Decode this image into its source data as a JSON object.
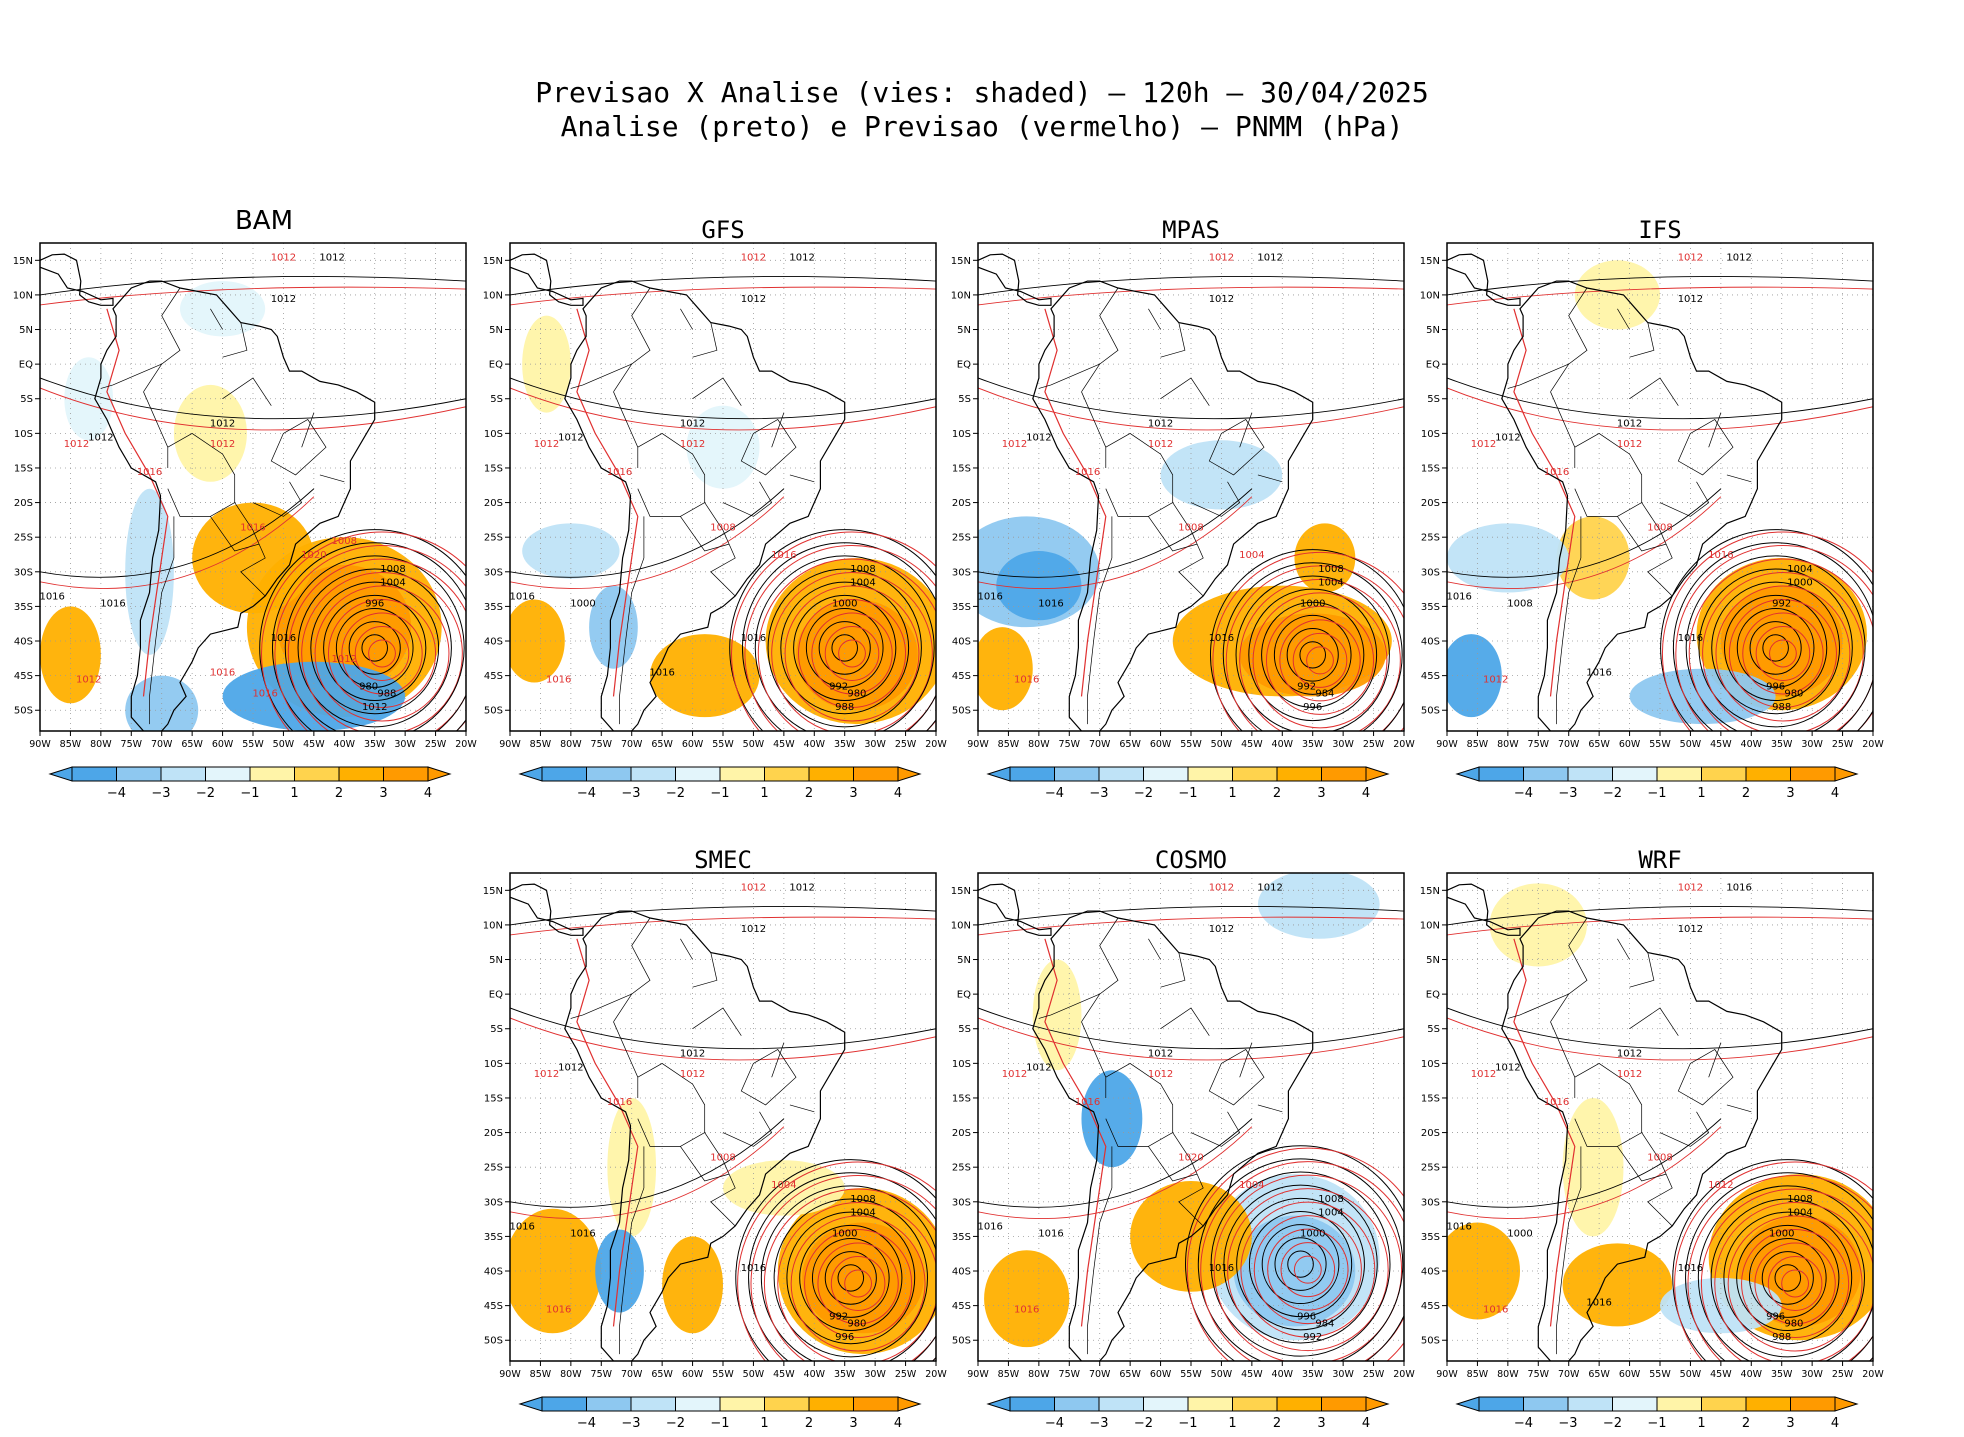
{
  "figure": {
    "title_line1": "Previsao X Analise (vies: shaded) – 120h – 30/04/2025",
    "title_line2": "Analise (preto) e Previsao (vermelho) – PNMM (hPa)"
  },
  "axes": {
    "lat_labels": [
      "15N",
      "10N",
      "5N",
      "EQ",
      "5S",
      "10S",
      "15S",
      "20S",
      "25S",
      "30S",
      "35S",
      "40S",
      "45S",
      "50S"
    ],
    "lon_labels": [
      "90W",
      "85W",
      "80W",
      "75W",
      "70W",
      "65W",
      "60W",
      "55W",
      "50W",
      "45W",
      "40W",
      "35W",
      "30W",
      "25W",
      "20W"
    ]
  },
  "colorbar": {
    "labels": [
      "-4",
      "-3",
      "-2",
      "-1",
      "1",
      "2",
      "3",
      "4"
    ],
    "colors": [
      "#4da6e8",
      "#8ec8f0",
      "#bfe3f7",
      "#e3f5fb",
      "#ffffff",
      "#fff4a8",
      "#ffd34d",
      "#ffb000",
      "#ff9a00"
    ]
  },
  "colors": {
    "analysis_contour": "#000000",
    "forecast_contour": "#e03030",
    "coast": "#000000"
  },
  "panels": [
    {
      "name": "BAM",
      "labels_black": [
        "1012",
        "1012",
        "1012",
        "1012",
        "1016",
        "1016",
        "1008",
        "1004",
        "996",
        "980",
        "988",
        "1012",
        "1016"
      ],
      "labels_red": [
        "1012",
        "1012",
        "1012",
        "1016",
        "1016",
        "1020",
        "1012",
        "1016",
        "1012",
        "1008",
        "1016"
      ]
    },
    {
      "name": "GFS",
      "labels_black": [
        "1012",
        "1012",
        "1012",
        "1012",
        "1016",
        "1016",
        "1008",
        "1004",
        "1000",
        "992",
        "980",
        "988",
        "1000",
        "1016"
      ],
      "labels_red": [
        "1012",
        "1012",
        "1012",
        "1016",
        "1008",
        "1016",
        "1016"
      ]
    },
    {
      "name": "MPAS",
      "labels_black": [
        "1012",
        "1012",
        "1012",
        "1012",
        "1016",
        "1016",
        "1008",
        "1004",
        "1000",
        "992",
        "984",
        "996",
        "1016"
      ],
      "labels_red": [
        "1012",
        "1012",
        "1012",
        "1016",
        "1008",
        "1004",
        "1016"
      ]
    },
    {
      "name": "IFS",
      "labels_black": [
        "1012",
        "1012",
        "1012",
        "1012",
        "1016",
        "1016",
        "1004",
        "1000",
        "992",
        "996",
        "980",
        "988",
        "1008",
        "1016"
      ],
      "labels_red": [
        "1012",
        "1012",
        "1012",
        "1016",
        "1008",
        "1016",
        "1012"
      ]
    },
    {
      "name": "SMEC",
      "labels_black": [
        "1012",
        "1012",
        "1012",
        "1012",
        "1016",
        "1016",
        "1008",
        "1004",
        "1000",
        "992",
        "980",
        "996",
        "1016"
      ],
      "labels_red": [
        "1012",
        "1012",
        "1012",
        "1016",
        "1008",
        "1004",
        "1016"
      ]
    },
    {
      "name": "COSMO",
      "labels_black": [
        "1012",
        "1012",
        "1012",
        "1012",
        "1016",
        "1016",
        "1008",
        "1004",
        "1000",
        "996",
        "984",
        "992",
        "1016"
      ],
      "labels_red": [
        "1012",
        "1012",
        "1012",
        "1016",
        "1020",
        "1004",
        "1016"
      ]
    },
    {
      "name": "WRF",
      "labels_black": [
        "1016",
        "1012",
        "1012",
        "1012",
        "1016",
        "1016",
        "1008",
        "1004",
        "1000",
        "996",
        "980",
        "988",
        "1000",
        "1016"
      ],
      "labels_red": [
        "1012",
        "1012",
        "1012",
        "1016",
        "1008",
        "1012",
        "1016"
      ]
    }
  ]
}
